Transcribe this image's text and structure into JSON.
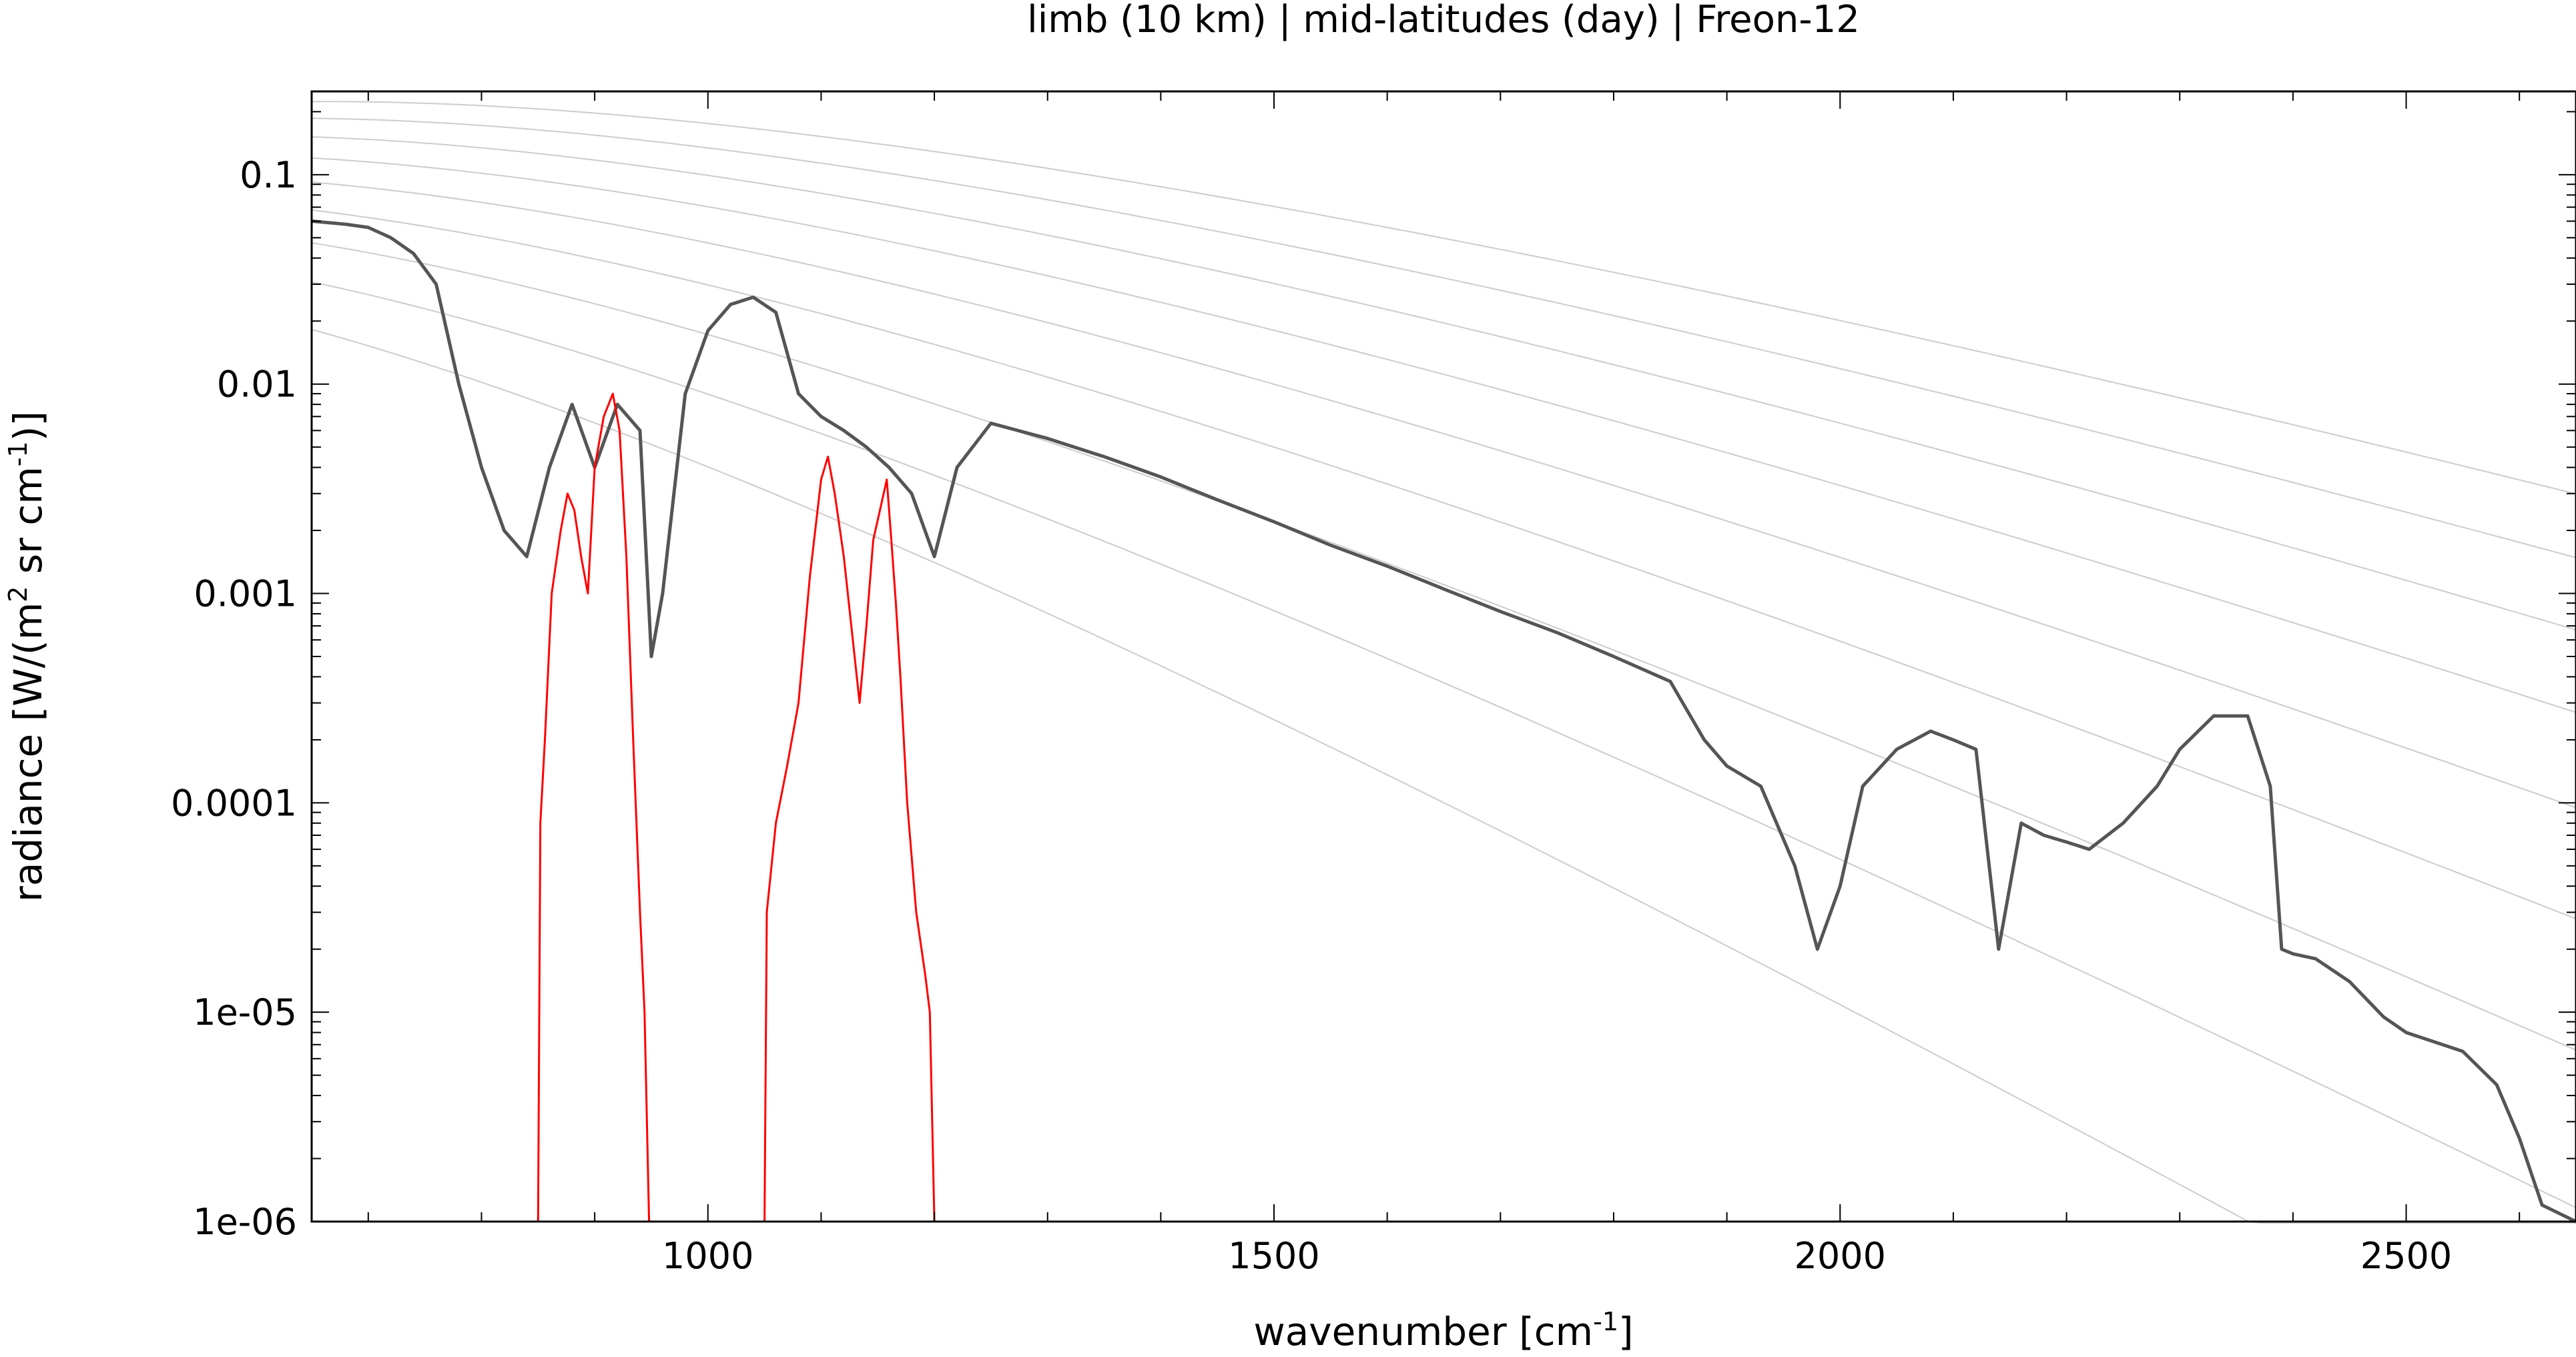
{
  "chart_data": {
    "type": "line",
    "title": "limb (10 km) | mid-latitudes (day) | Freon-12",
    "xlabel": {
      "text": "wavenumber [cm",
      "sup": "-1",
      "tail": "]"
    },
    "ylabel": {
      "text": "radiance [W/(m",
      "sup1": "2",
      "mid": " sr cm",
      "sup2": "-1",
      "tail": ")]"
    },
    "xlim": [
      650,
      2650
    ],
    "ylim": [
      1e-06,
      0.25
    ],
    "yscale": "log",
    "grid": false,
    "x_ticks": [
      {
        "value": 1000,
        "label": "1000"
      },
      {
        "value": 1500,
        "label": "1500"
      },
      {
        "value": 2000,
        "label": "2000"
      },
      {
        "value": 2500,
        "label": "2500"
      }
    ],
    "y_ticks": [
      {
        "value": 0.1,
        "label": "0.1"
      },
      {
        "value": 0.01,
        "label": "0.01"
      },
      {
        "value": 0.001,
        "label": "0.001"
      },
      {
        "value": 0.0001,
        "label": "0.0001"
      },
      {
        "value": 1e-05,
        "label": "1e-05"
      },
      {
        "value": 1e-06,
        "label": "1e-06"
      }
    ],
    "planck_reference_temperatures_K": [
      180,
      200,
      220,
      240,
      260,
      280,
      300,
      320,
      340
    ],
    "series": [
      {
        "role": "total radiance",
        "color": "#555555",
        "x": [
          650,
          680,
          700,
          720,
          740,
          760,
          780,
          800,
          820,
          840,
          860,
          880,
          900,
          920,
          940,
          950,
          960,
          980,
          1000,
          1020,
          1040,
          1060,
          1080,
          1100,
          1120,
          1140,
          1160,
          1180,
          1200,
          1220,
          1250,
          1300,
          1350,
          1400,
          1450,
          1500,
          1550,
          1600,
          1650,
          1700,
          1750,
          1800,
          1850,
          1880,
          1900,
          1930,
          1960,
          1980,
          2000,
          2020,
          2050,
          2080,
          2100,
          2120,
          2140,
          2160,
          2180,
          2200,
          2220,
          2250,
          2280,
          2300,
          2330,
          2360,
          2380,
          2390,
          2400,
          2420,
          2450,
          2480,
          2500,
          2550,
          2580,
          2600,
          2620,
          2650
        ],
        "y": [
          0.06,
          0.058,
          0.056,
          0.05,
          0.042,
          0.03,
          0.01,
          0.004,
          0.002,
          0.0015,
          0.004,
          0.008,
          0.004,
          0.008,
          0.006,
          0.0005,
          0.001,
          0.009,
          0.018,
          0.024,
          0.026,
          0.022,
          0.009,
          0.007,
          0.006,
          0.005,
          0.004,
          0.003,
          0.0015,
          0.004,
          0.0065,
          0.0055,
          0.0045,
          0.0036,
          0.0028,
          0.0022,
          0.0017,
          0.00135,
          0.00105,
          0.00082,
          0.00065,
          0.0005,
          0.00038,
          0.0002,
          0.00015,
          0.00012,
          5e-05,
          2e-05,
          4e-05,
          0.00012,
          0.00018,
          0.00022,
          0.0002,
          0.00018,
          2e-05,
          8e-05,
          7e-05,
          6.5e-05,
          6e-05,
          8e-05,
          0.00012,
          0.00018,
          0.00026,
          0.00026,
          0.00012,
          2e-05,
          1.9e-05,
          1.8e-05,
          1.4e-05,
          9.5e-06,
          8e-06,
          6.5e-06,
          4.5e-06,
          2.5e-06,
          1.2e-06,
          1e-06
        ]
      },
      {
        "role": "Freon-12 contribution",
        "color": "#ff0000",
        "x": [
          850,
          852,
          856,
          862,
          870,
          876,
          882,
          888,
          894,
          900,
          908,
          916,
          922,
          928,
          934,
          940,
          944,
          948,
          1050,
          1052,
          1060,
          1070,
          1080,
          1090,
          1100,
          1106,
          1112,
          1120,
          1128,
          1134,
          1140,
          1146,
          1152,
          1158,
          1162,
          1166,
          1170,
          1176,
          1184,
          1192,
          1196,
          1200
        ],
        "y": [
          1e-06,
          8e-05,
          0.0002,
          0.001,
          0.002,
          0.003,
          0.0025,
          0.0015,
          0.001,
          0.004,
          0.007,
          0.009,
          0.006,
          0.0015,
          0.0002,
          3e-05,
          1e-05,
          1e-06,
          1e-06,
          3e-05,
          8e-05,
          0.00015,
          0.0003,
          0.0012,
          0.0035,
          0.0045,
          0.003,
          0.0015,
          0.0006,
          0.0003,
          0.0007,
          0.0018,
          0.0025,
          0.0035,
          0.0018,
          0.0009,
          0.0004,
          0.0001,
          3e-05,
          1.5e-05,
          1e-05,
          1e-06
        ]
      }
    ]
  }
}
